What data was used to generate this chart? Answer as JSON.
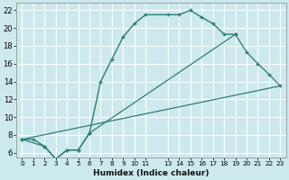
{
  "xlabel": "Humidex (Indice chaleur)",
  "bg_color": "#cce9ee",
  "grid_color": "#ffffff",
  "line_color": "#2e7d6e",
  "xlim": [
    -0.5,
    23.5
  ],
  "ylim": [
    5.5,
    22.8
  ],
  "xtick_labels": [
    "0",
    "1",
    "2",
    "3",
    "4",
    "5",
    "6",
    "7",
    "8",
    "9",
    "10",
    "11",
    "13",
    "14",
    "15",
    "16",
    "17",
    "18",
    "19",
    "20",
    "21",
    "22",
    "23"
  ],
  "xtick_pos": [
    0,
    1,
    2,
    3,
    4,
    5,
    6,
    7,
    8,
    9,
    10,
    11,
    13,
    14,
    15,
    16,
    17,
    18,
    19,
    20,
    21,
    22,
    23
  ],
  "yticks": [
    6,
    8,
    10,
    12,
    14,
    16,
    18,
    20,
    22
  ],
  "series1_x": [
    0,
    1,
    2,
    3,
    4,
    5,
    6,
    7,
    8,
    9,
    10,
    11,
    13,
    14,
    15,
    16,
    17,
    18,
    19
  ],
  "series1_y": [
    7.5,
    7.5,
    6.7,
    5.3,
    6.3,
    6.3,
    8.2,
    14.0,
    16.5,
    19.0,
    20.5,
    21.5,
    21.5,
    21.5,
    22.0,
    21.2,
    20.5,
    19.3,
    19.3
  ],
  "series2_x": [
    0,
    2,
    3,
    4,
    5,
    6,
    19,
    20,
    21,
    22,
    23
  ],
  "series2_y": [
    7.5,
    6.7,
    5.3,
    6.3,
    6.3,
    8.2,
    19.3,
    17.3,
    16.0,
    14.8,
    13.5
  ],
  "series3_x": [
    0,
    23
  ],
  "series3_y": [
    7.5,
    13.5
  ]
}
